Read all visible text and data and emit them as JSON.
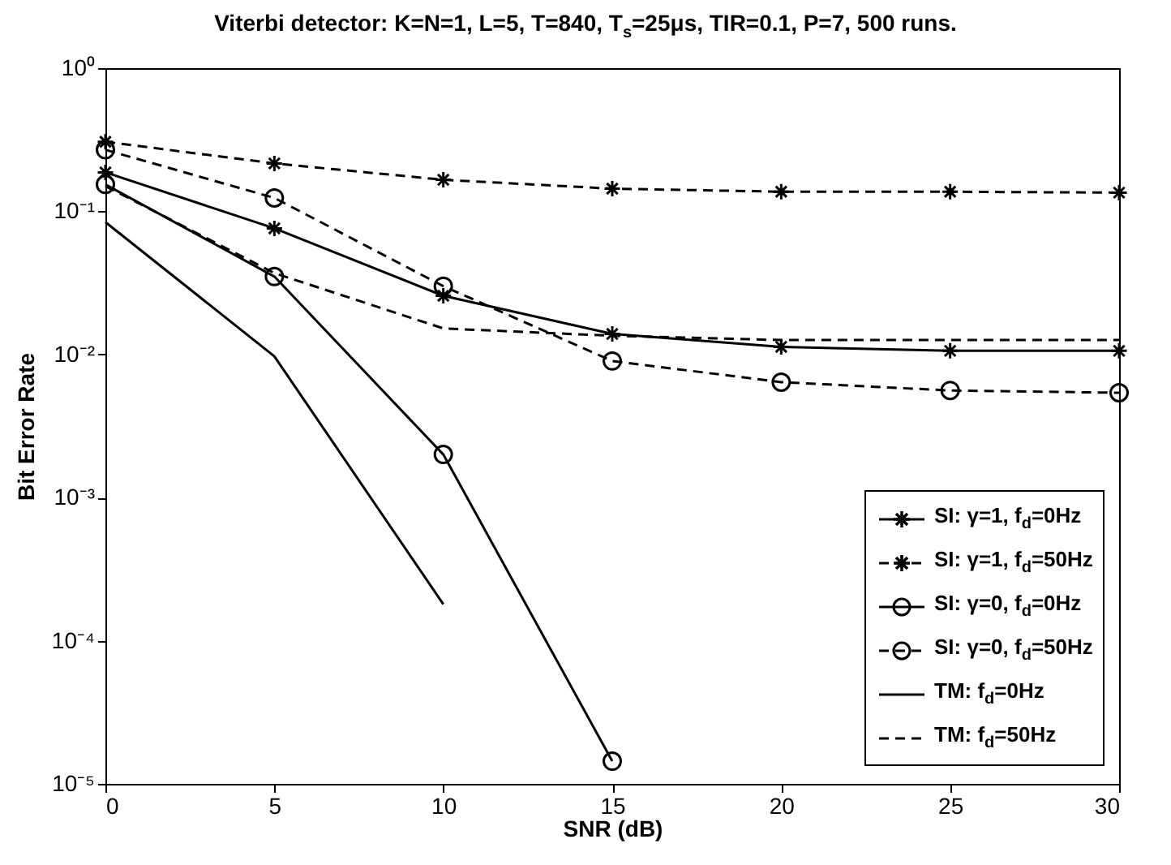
{
  "chart_data": {
    "type": "line",
    "title": "Viterbi detector: K=N=1, L=5, T=840, T$_{s}$=25μs, TIR=0.1, P=7, 500 runs.",
    "xlabel": "SNR (dB)",
    "ylabel": "Bit Error Rate",
    "x": [
      0,
      5,
      10,
      15,
      20,
      25,
      30
    ],
    "series": [
      {
        "name": "SI: γ=1, f$_{d}$=0Hz",
        "color": "#000000",
        "line_style": "solid",
        "marker": "cross",
        "values": [
          0.187,
          0.076,
          0.0257,
          0.0139,
          0.0113,
          0.0106,
          0.0106
        ]
      },
      {
        "name": "SI: γ=1, f$_{d}$=50Hz",
        "color": "#000000",
        "line_style": "dashed",
        "marker": "cross",
        "values": [
          0.306,
          0.216,
          0.166,
          0.144,
          0.137,
          0.137,
          0.135
        ]
      },
      {
        "name": "SI: γ=0, f$_{d}$=0Hz",
        "color": "#000000",
        "line_style": "solid",
        "marker": "circle",
        "values": [
          0.154,
          0.035,
          0.002,
          1.44e-05,
          null,
          null,
          null
        ]
      },
      {
        "name": "SI: γ=0, f$_{d}$=50Hz",
        "color": "#000000",
        "line_style": "dashed",
        "marker": "circle",
        "values": [
          0.269,
          0.124,
          0.03,
          0.009,
          0.0064,
          0.0056,
          0.0054
        ]
      },
      {
        "name": "TM: f$_{d}$=0Hz",
        "color": "#000000",
        "line_style": "solid",
        "marker": "none",
        "values": [
          0.084,
          0.0097,
          0.00018,
          null,
          null,
          null,
          null
        ]
      },
      {
        "name": "TM: f$_{d}$=50Hz",
        "color": "#000000",
        "line_style": "dashed",
        "marker": "none",
        "values": [
          0.15,
          0.037,
          0.0152,
          0.0135,
          0.0126,
          0.0126,
          0.0126
        ]
      }
    ],
    "xlim": [
      0,
      30
    ],
    "xticks": [
      0,
      5,
      10,
      15,
      20,
      25,
      30
    ],
    "ylim": [
      1e-05,
      1
    ],
    "yticks": [
      {
        "value": 1e-05,
        "label": "10⁻⁵"
      },
      {
        "value": 0.0001,
        "label": "10⁻⁴"
      },
      {
        "value": 0.001,
        "label": "10⁻³"
      },
      {
        "value": 0.01,
        "label": "10⁻²"
      },
      {
        "value": 0.1,
        "label": "10⁻¹"
      },
      {
        "value": 1,
        "label": "10⁰"
      }
    ],
    "log": true,
    "grid": false,
    "legend": "bottom right"
  }
}
